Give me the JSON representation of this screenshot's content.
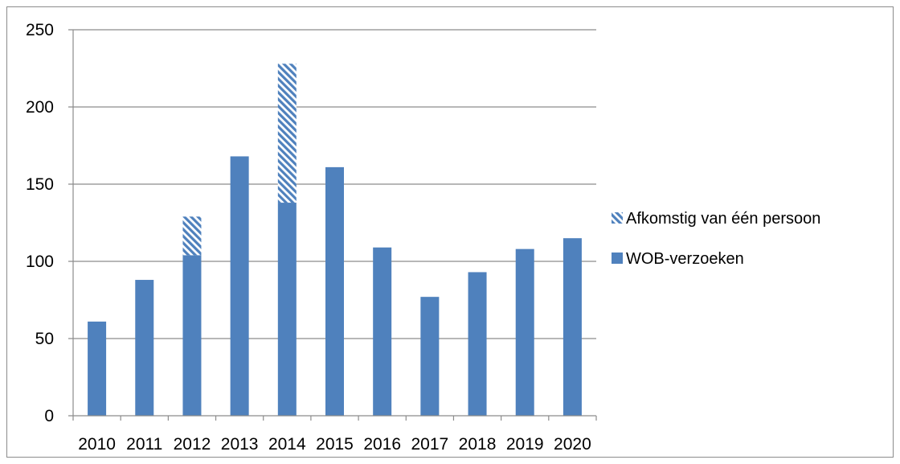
{
  "chart_data": {
    "type": "bar",
    "stacked": true,
    "categories": [
      "2010",
      "2011",
      "2012",
      "2013",
      "2014",
      "2015",
      "2016",
      "2017",
      "2018",
      "2019",
      "2020"
    ],
    "series": [
      {
        "name": "WOB-verzoeken",
        "values": [
          61,
          88,
          104,
          168,
          138,
          161,
          109,
          77,
          93,
          108,
          115
        ],
        "color": "#4F81BD",
        "pattern": "solid"
      },
      {
        "name": "Afkomstig van één persoon",
        "values": [
          0,
          0,
          25,
          0,
          90,
          0,
          0,
          0,
          0,
          0,
          0
        ],
        "color": "#4F81BD",
        "pattern": "diagonal-hatch"
      }
    ],
    "yticks": [
      "0",
      "50",
      "100",
      "150",
      "200",
      "250"
    ],
    "ylim": [
      0,
      250
    ],
    "grid": true,
    "legend_position": "right",
    "legend_order": [
      "Afkomstig van één persoon",
      "WOB-verzoeken"
    ]
  }
}
